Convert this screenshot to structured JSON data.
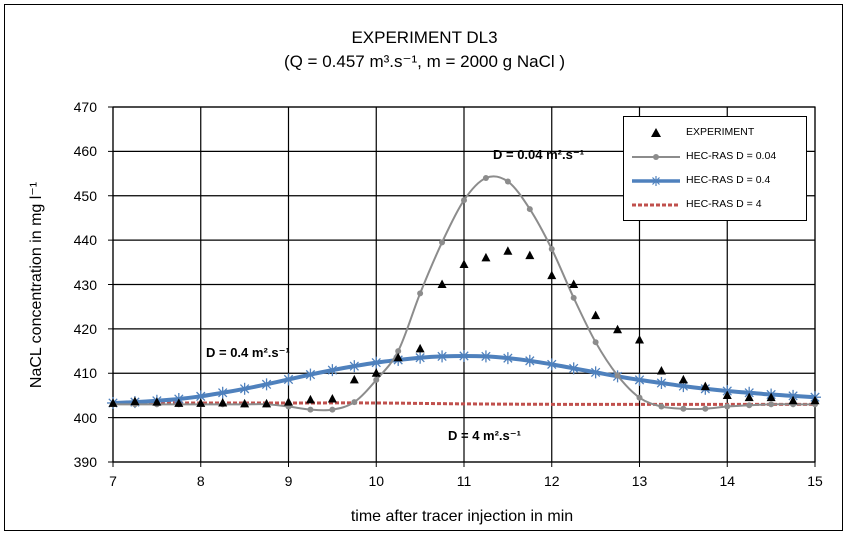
{
  "chart_data": {
    "type": "line",
    "title": "EXPERIMENT DL3",
    "subtitle": "(Q = 0.457 m³.s⁻¹, m = 2000 g NaCl )",
    "xlabel": "time after tracer injection in min",
    "ylabel": "NaCL concentration in mg l⁻¹",
    "xlim": [
      7,
      15
    ],
    "ylim": [
      390,
      470
    ],
    "xticks": [
      "7",
      "8",
      "9",
      "10",
      "11",
      "12",
      "13",
      "14",
      "15"
    ],
    "yticks": [
      "390",
      "400",
      "410",
      "420",
      "430",
      "440",
      "450",
      "460",
      "470"
    ],
    "grid": true,
    "legend_position": "top-right",
    "series": [
      {
        "name": "EXPERIMENT",
        "style": "markers-triangle",
        "color": "#000000",
        "x": [
          7,
          7.25,
          7.5,
          7.75,
          8,
          8.25,
          8.5,
          8.75,
          9,
          9.25,
          9.5,
          9.75,
          10,
          10.25,
          10.5,
          10.75,
          11,
          11.25,
          11.5,
          11.75,
          12,
          12.25,
          12.5,
          12.75,
          13,
          13.25,
          13.5,
          13.75,
          14,
          14.25,
          14.5,
          14.75,
          15
        ],
        "y": [
          403.2,
          403.6,
          403.5,
          403.2,
          403.2,
          403.3,
          403.1,
          403.1,
          403.5,
          404.0,
          404.2,
          408.5,
          410.0,
          413.5,
          415.5,
          430.0,
          434.5,
          436.0,
          437.5,
          436.5,
          432.0,
          430.0,
          423.0,
          419.8,
          417.5,
          410.5,
          408.5,
          407.0,
          405.0,
          404.5,
          404.5,
          403.8,
          403.8
        ]
      },
      {
        "name": "HEC-RAS D = 0.04",
        "style": "line-circle",
        "color": "#8c8c8c",
        "x": [
          7,
          7.25,
          7.5,
          7.75,
          8,
          8.25,
          8.5,
          8.75,
          9,
          9.25,
          9.5,
          9.75,
          10,
          10.25,
          10.5,
          10.75,
          11,
          11.25,
          11.5,
          11.75,
          12,
          12.25,
          12.5,
          12.75,
          13,
          13.25,
          13.5,
          13.75,
          14,
          14.25,
          14.5,
          14.75,
          15
        ],
        "y": [
          403.0,
          403.0,
          403.0,
          403.0,
          403.0,
          403.0,
          403.0,
          403.0,
          402.5,
          401.8,
          401.8,
          403.5,
          408.5,
          415.0,
          428.0,
          439.5,
          449.0,
          454.0,
          453.2,
          447.0,
          438.0,
          427.0,
          417.0,
          409.5,
          404.5,
          402.5,
          402.0,
          402.0,
          402.5,
          402.8,
          403.0,
          403.0,
          403.0
        ]
      },
      {
        "name": "HEC-RAS D = 0.4",
        "style": "line-star",
        "color": "#4f81bd",
        "x": [
          7,
          7.25,
          7.5,
          7.75,
          8,
          8.25,
          8.5,
          8.75,
          9,
          9.25,
          9.5,
          9.75,
          10,
          10.25,
          10.5,
          10.75,
          11,
          11.25,
          11.5,
          11.75,
          12,
          12.25,
          12.5,
          12.75,
          13,
          13.25,
          13.5,
          13.75,
          14,
          14.25,
          14.5,
          14.75,
          15
        ],
        "y": [
          403.3,
          403.5,
          403.8,
          404.2,
          404.8,
          405.6,
          406.5,
          407.5,
          408.6,
          409.7,
          410.7,
          411.6,
          412.4,
          413.0,
          413.5,
          413.8,
          413.9,
          413.8,
          413.4,
          412.8,
          412.0,
          411.1,
          410.2,
          409.3,
          408.5,
          407.8,
          407.1,
          406.5,
          406.0,
          405.6,
          405.2,
          404.9,
          404.6
        ]
      },
      {
        "name": "HEC-RAS D = 4",
        "style": "dashed",
        "color": "#c0504d",
        "x": [
          7,
          8,
          9,
          10,
          11,
          12,
          13,
          14,
          15
        ],
        "y": [
          403.3,
          403.3,
          403.3,
          403.3,
          403.1,
          403.0,
          403.0,
          403.0,
          403.0
        ]
      }
    ],
    "annotations": [
      {
        "text": "D = 0.04 m².s⁻¹"
      },
      {
        "text": "D = 0.4 m².s⁻¹"
      },
      {
        "text": "D = 4 m².s⁻¹"
      }
    ]
  }
}
